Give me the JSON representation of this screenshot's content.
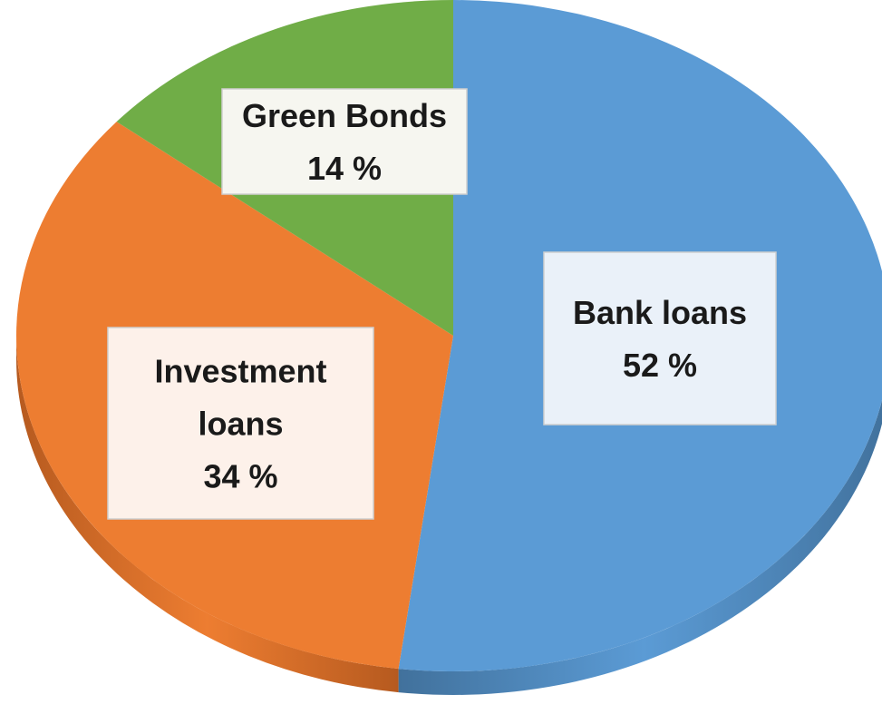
{
  "chart_data": {
    "type": "pie",
    "style": "3d",
    "slices": [
      {
        "label": "Bank loans",
        "value": 52,
        "display": "52 %",
        "color": "#5B9BD5",
        "side_color": "#41719C"
      },
      {
        "label": "Investment loans",
        "value": 34,
        "display": "34 %",
        "color": "#ED7D31",
        "side_color": "#B65A1F"
      },
      {
        "label": "Green Bonds",
        "value": 14,
        "display": "14 %",
        "color": "#70AD47",
        "side_color": "#4E7C31"
      }
    ],
    "label_box_colors": [
      "#EAF1F9",
      "#FDF1EA",
      "#F6F6F0"
    ],
    "label_lines": [
      [
        "Bank loans",
        "52 %"
      ],
      [
        "Investment",
        "loans",
        "34 %"
      ],
      [
        "Green Bonds",
        "14 %"
      ]
    ]
  }
}
